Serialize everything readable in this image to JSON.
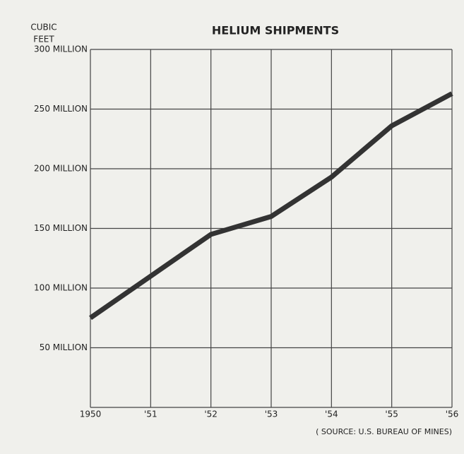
{
  "chart_data": {
    "type": "line",
    "title": "HELIUM SHIPMENTS",
    "ylabel": [
      "CUBIC",
      "FEET"
    ],
    "source": "( SOURCE: U.S. BUREAU OF MINES)",
    "categories": [
      "1950",
      "'51",
      "'52",
      "'53",
      "'54",
      "'55",
      "'56"
    ],
    "series": [
      {
        "name": "Helium shipments",
        "color": "#333333",
        "values": [
          75000000,
          110000000,
          145000000,
          160000000,
          193000000,
          236000000,
          263000000
        ]
      }
    ],
    "ylim": [
      0,
      300000000
    ],
    "yticks": [
      {
        "value": 50000000,
        "label": "50 MILLION"
      },
      {
        "value": 100000000,
        "label": "100 MILLION"
      },
      {
        "value": 150000000,
        "label": "150 MILLION"
      },
      {
        "value": 200000000,
        "label": "200 MILLION"
      },
      {
        "value": 250000000,
        "label": "250 MILLION"
      },
      {
        "value": 300000000,
        "label": "300 MILLION"
      }
    ],
    "grid": true
  }
}
